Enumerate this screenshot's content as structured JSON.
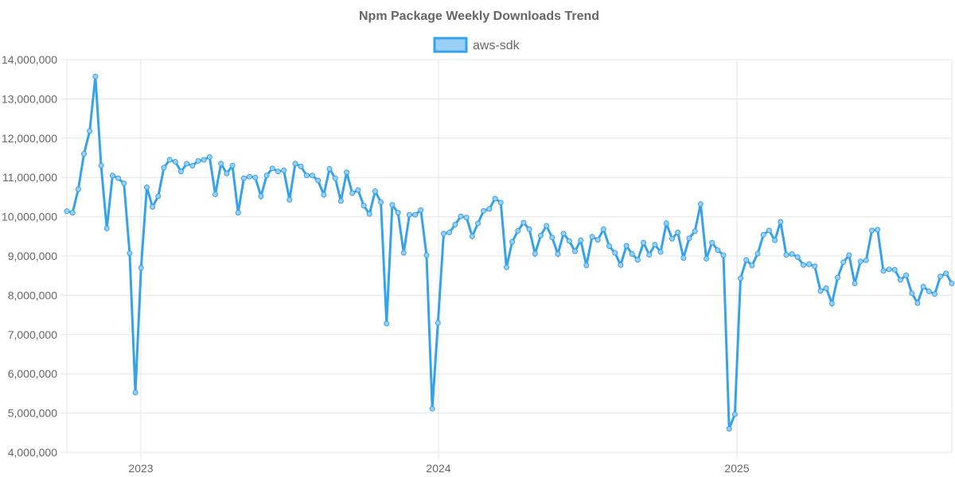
{
  "chart_data": {
    "type": "line",
    "title": "Npm Package Weekly Downloads Trend",
    "xlabel": "",
    "ylabel": "",
    "ylim": [
      4000000,
      14000000
    ],
    "y_ticks": [
      "4,000,000",
      "5,000,000",
      "6,000,000",
      "7,000,000",
      "8,000,000",
      "9,000,000",
      "10,000,000",
      "11,000,000",
      "12,000,000",
      "13,000,000",
      "14,000,000"
    ],
    "x_ticks": [
      "2023",
      "2024",
      "2025"
    ],
    "grid": true,
    "legend": "top-center",
    "colors": {
      "line": "#36a2eb",
      "fill": "#9ad0f5"
    },
    "series": [
      {
        "name": "aws-sdk",
        "values": [
          10140000,
          10100000,
          10700000,
          11600000,
          12180000,
          13570000,
          11300000,
          9700000,
          11050000,
          10980000,
          10850000,
          9070000,
          5520000,
          8700000,
          10750000,
          10250000,
          10520000,
          11250000,
          11450000,
          11400000,
          11150000,
          11350000,
          11300000,
          11420000,
          11450000,
          11520000,
          10570000,
          11350000,
          11100000,
          11300000,
          10100000,
          10980000,
          11020000,
          11000000,
          10520000,
          11050000,
          11230000,
          11150000,
          11180000,
          10430000,
          11350000,
          11280000,
          11050000,
          11050000,
          10920000,
          10560000,
          11220000,
          10980000,
          10400000,
          11130000,
          10600000,
          10680000,
          10280000,
          10070000,
          10650000,
          10370000,
          7280000,
          10300000,
          10100000,
          9080000,
          10050000,
          10050000,
          10170000,
          9020000,
          5110000,
          7300000,
          9570000,
          9600000,
          9800000,
          10010000,
          9980000,
          9500000,
          9830000,
          10150000,
          10200000,
          10460000,
          10360000,
          8710000,
          9360000,
          9640000,
          9850000,
          9680000,
          9060000,
          9520000,
          9770000,
          9470000,
          9050000,
          9570000,
          9380000,
          9120000,
          9400000,
          8760000,
          9490000,
          9410000,
          9680000,
          9250000,
          9080000,
          8770000,
          9260000,
          9050000,
          8900000,
          9340000,
          9030000,
          9290000,
          9100000,
          9830000,
          9440000,
          9600000,
          8950000,
          9450000,
          9630000,
          10320000,
          8930000,
          9340000,
          9150000,
          9020000,
          4600000,
          4970000,
          8430000,
          8900000,
          8760000,
          9060000,
          9540000,
          9650000,
          9400000,
          9870000,
          9030000,
          9050000,
          8970000,
          8770000,
          8790000,
          8740000,
          8110000,
          8180000,
          7790000,
          8450000,
          8840000,
          9020000,
          8300000,
          8860000,
          8890000,
          9650000,
          9670000,
          8620000,
          8660000,
          8650000,
          8390000,
          8510000,
          8050000,
          7800000,
          8220000,
          8100000,
          8030000,
          8480000,
          8560000,
          8300000
        ]
      }
    ]
  }
}
